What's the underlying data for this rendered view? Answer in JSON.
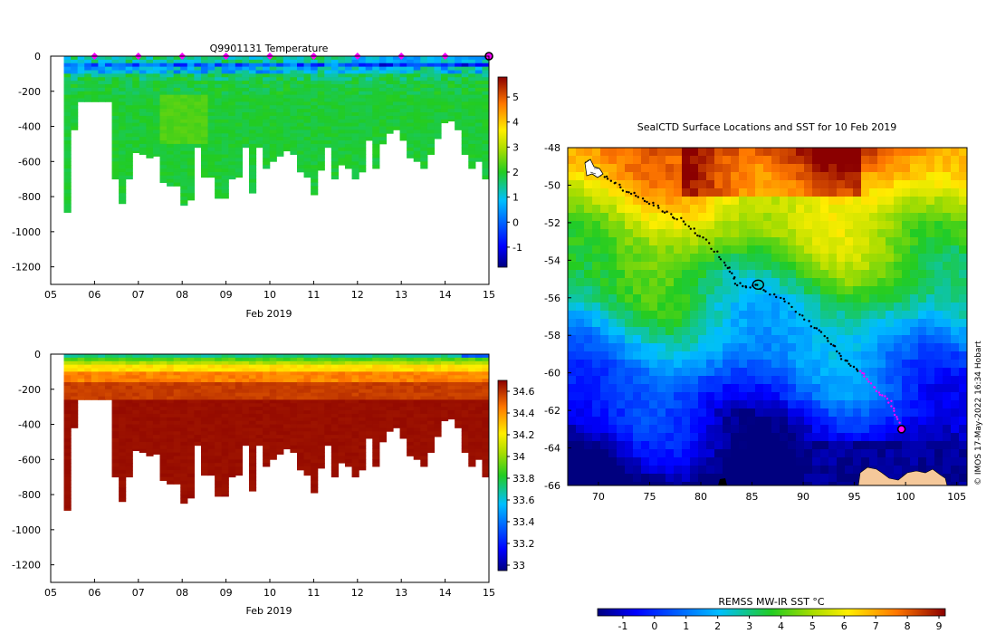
{
  "chart_data": [
    {
      "type": "heatmap",
      "title": "Q9901131  Temperature",
      "xlabel": "Feb 2019",
      "ylabel": "",
      "xlim": [
        5,
        15
      ],
      "ylim": [
        -1300,
        0
      ],
      "xticks": [
        "05",
        "06",
        "07",
        "08",
        "09",
        "10",
        "11",
        "12",
        "13",
        "14",
        "15"
      ],
      "yticks": [
        "0",
        "-200",
        "-400",
        "-600",
        "-800",
        "-1000",
        "-1200"
      ],
      "ytick_values": [
        0,
        -200,
        -400,
        -600,
        -800,
        -1000,
        -1200
      ],
      "colorbar": {
        "min": -1.8,
        "max": 5.8,
        "ticks": [
          "5",
          "4",
          "3",
          "2",
          "1",
          "0",
          "-1"
        ],
        "tick_values": [
          5,
          4,
          3,
          2,
          1,
          0,
          -1
        ]
      },
      "markers": {
        "color": "#ff00ff",
        "days": [
          6,
          7,
          8,
          9,
          10,
          11,
          12,
          13,
          14
        ],
        "last_day": 15
      },
      "profile_start": 5.3,
      "profile_end": 15.0,
      "profile_count": 62,
      "max_depths": [
        890,
        420,
        260,
        260,
        260,
        260,
        260,
        700,
        840,
        700,
        550,
        560,
        580,
        570,
        720,
        740,
        740,
        850,
        820,
        520,
        690,
        690,
        810,
        810,
        700,
        690,
        520,
        780,
        520,
        640,
        600,
        570,
        540,
        560,
        660,
        690,
        790,
        650,
        520,
        700,
        620,
        640,
        700,
        660,
        480,
        640,
        500,
        440,
        420,
        480,
        580,
        600,
        640,
        560,
        470,
        380,
        370,
        420,
        560,
        640,
        600,
        700
      ]
    },
    {
      "type": "heatmap",
      "title": "",
      "xlabel": "Feb 2019",
      "ylabel": "",
      "xlim": [
        5,
        15
      ],
      "ylim": [
        -1300,
        0
      ],
      "xticks": [
        "05",
        "06",
        "07",
        "08",
        "09",
        "10",
        "11",
        "12",
        "13",
        "14",
        "15"
      ],
      "yticks": [
        "0",
        "-200",
        "-400",
        "-600",
        "-800",
        "-1000",
        "-1200"
      ],
      "ytick_values": [
        0,
        -200,
        -400,
        -600,
        -800,
        -1000,
        -1200
      ],
      "colorbar": {
        "min": 32.95,
        "max": 34.7,
        "ticks": [
          "34.6",
          "34.4",
          "34.2",
          "34",
          "33.8",
          "33.6",
          "33.4",
          "33.2",
          "33"
        ],
        "tick_values": [
          34.6,
          34.4,
          34.2,
          34.0,
          33.8,
          33.6,
          33.4,
          33.2,
          33.0
        ]
      }
    },
    {
      "type": "heatmap",
      "title": "SealCTD Surface Locations and SST for 10 Feb 2019",
      "xlabel": "",
      "ylabel": "",
      "xlim": [
        67,
        106
      ],
      "ylim": [
        -66,
        -48
      ],
      "xticks": [
        "70",
        "75",
        "80",
        "85",
        "90",
        "95",
        "100",
        "105"
      ],
      "xtick_values": [
        70,
        75,
        80,
        85,
        90,
        95,
        100,
        105
      ],
      "yticks": [
        "-48",
        "-50",
        "-52",
        "-54",
        "-56",
        "-58",
        "-60",
        "-62",
        "-64",
        "-66"
      ],
      "ytick_values": [
        -48,
        -50,
        -52,
        -54,
        -56,
        -58,
        -60,
        -62,
        -64,
        -66
      ],
      "colorbar": {
        "label": "REMSS MW-IR SST °C",
        "min": -1.8,
        "max": 9.2,
        "ticks": [
          "-1",
          "0",
          "1",
          "2",
          "3",
          "4",
          "5",
          "6",
          "7",
          "8",
          "9"
        ],
        "tick_values": [
          -1,
          0,
          1,
          2,
          3,
          4,
          5,
          6,
          7,
          8,
          9
        ]
      },
      "track": [
        [
          68.9,
          -48.7
        ],
        [
          70.5,
          -49.5
        ],
        [
          72.5,
          -50.2
        ],
        [
          74.5,
          -50.8
        ],
        [
          76.5,
          -51.4
        ],
        [
          78.5,
          -52.0
        ],
        [
          80.5,
          -53.0
        ],
        [
          82.5,
          -54.2
        ],
        [
          83.6,
          -55.3
        ],
        [
          85.5,
          -55.4
        ],
        [
          88.0,
          -56.1
        ],
        [
          90.5,
          -57.3
        ],
        [
          92.5,
          -58.3
        ],
        [
          94.0,
          -59.3
        ],
        [
          95.5,
          -59.9
        ],
        [
          97.0,
          -60.8
        ],
        [
          98.5,
          -61.6
        ],
        [
          99.5,
          -62.8
        ]
      ],
      "magenta_from_index": 14,
      "final_position": [
        99.6,
        -63.0
      ],
      "credit": "© IMOS 17-May-2022 16:34 Hobart"
    }
  ]
}
